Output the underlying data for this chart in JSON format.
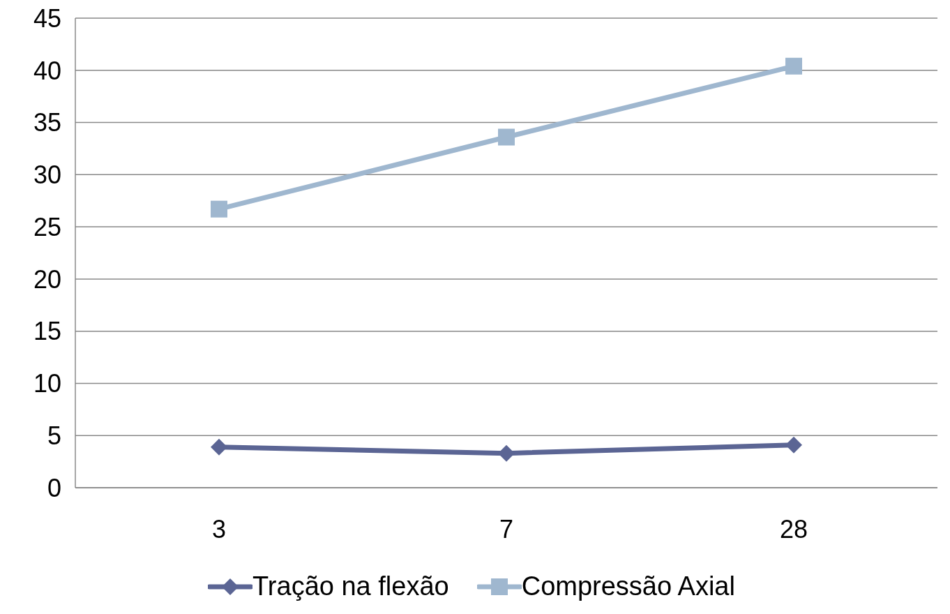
{
  "chart_data": {
    "type": "line",
    "categories": [
      "3",
      "7",
      "28"
    ],
    "series": [
      {
        "name": "Tração na flexão",
        "color": "#5b6594",
        "values": [
          3.9,
          3.3,
          4.1
        ],
        "marker": "diamond"
      },
      {
        "name": "Compressão Axial",
        "color": "#9fb7cf",
        "values": [
          26.7,
          33.6,
          40.4
        ],
        "marker": "square"
      }
    ],
    "ylim": [
      0,
      45
    ],
    "yticks": [
      0,
      5,
      10,
      15,
      20,
      25,
      30,
      35,
      40,
      45
    ],
    "grid": "y",
    "legend": "bottom"
  }
}
